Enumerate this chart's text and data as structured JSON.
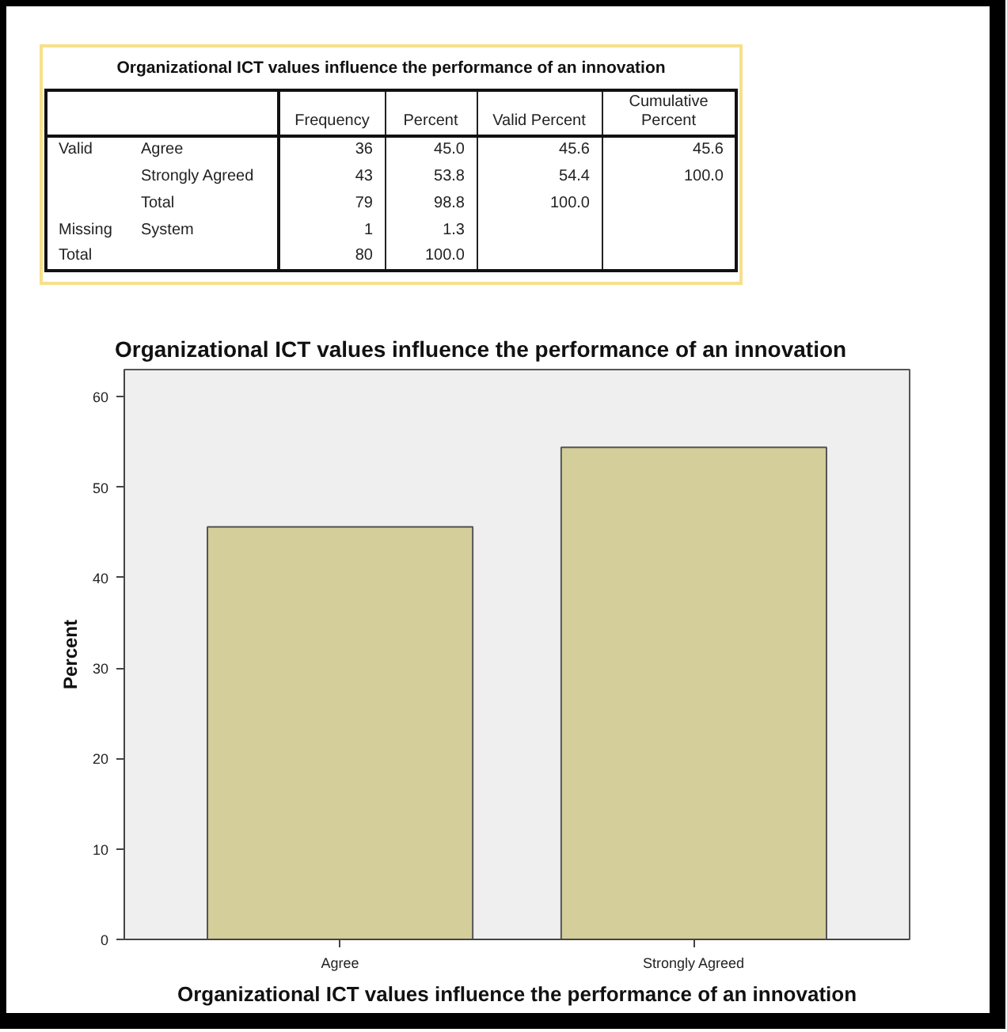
{
  "chart_data": [
    {
      "type": "other",
      "title": "Organizational ICT values influence the performance of an innovation",
      "annotations": [
        "Frequency",
        "Percent",
        "Valid Percent",
        "Cumulative Percent",
        "Valid",
        "Agree",
        "36",
        "45.0",
        "45.6",
        "45.6",
        "Strongly Agreed",
        "43",
        "53.8",
        "54.4",
        "100.0",
        "Total",
        "79",
        "98.8",
        "100.0",
        "Missing",
        "System",
        "1",
        "1.3",
        "Total",
        "80",
        "100.0"
      ]
    },
    {
      "type": "bar",
      "title": "Organizational ICT values influence the performance of an innovation",
      "xlabel": "Organizational ICT values influence the performance of an innovation",
      "ylabel": "Percent",
      "categories": [
        "Agree",
        "Strongly Agreed"
      ],
      "values": [
        45.6,
        54.4
      ],
      "color": "#d3ce9a",
      "ylim": [
        0,
        63
      ],
      "yticks": [
        0,
        10,
        20,
        30,
        40,
        50,
        60
      ]
    }
  ]
}
